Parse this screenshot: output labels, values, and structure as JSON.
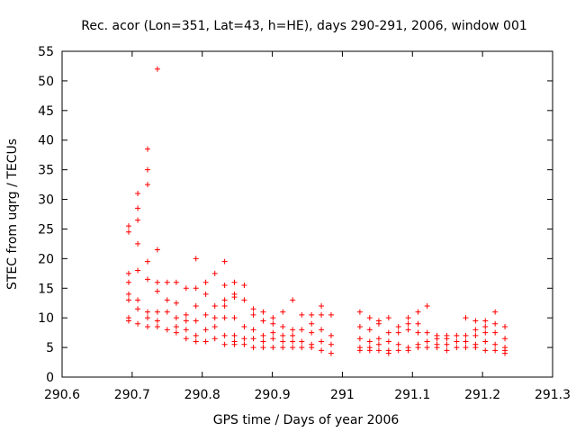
{
  "chart_data": {
    "type": "scatter",
    "title": "Rec. acor (Lon=351, Lat=43, h=HE), days 290-291, 2006, window 001",
    "xlabel": "GPS time / Days of year 2006",
    "ylabel": "STEC from uqrg / TECUs",
    "xlim": [
      290.6,
      291.3
    ],
    "ylim": [
      0,
      55
    ],
    "xticks": [
      290.6,
      290.7,
      290.8,
      290.9,
      291.0,
      291.1,
      291.2,
      291.3
    ],
    "xtick_labels": [
      "290.6",
      "290.7",
      "290.8",
      "290.9",
      "291",
      "291.1",
      "291.2",
      "291.3"
    ],
    "yticks": [
      0,
      5,
      10,
      15,
      20,
      25,
      30,
      35,
      40,
      45,
      50,
      55
    ],
    "ytick_labels": [
      "0",
      "5",
      "10",
      "15",
      "20",
      "25",
      "30",
      "35",
      "40",
      "45",
      "50",
      "55"
    ],
    "grid": false,
    "marker": "+",
    "color": "#ff0000",
    "series": [
      {
        "name": "STEC",
        "points": [
          [
            290.695,
            24.5
          ],
          [
            290.695,
            25.5
          ],
          [
            290.695,
            17.5
          ],
          [
            290.695,
            16.0
          ],
          [
            290.695,
            14.0
          ],
          [
            290.695,
            13.0
          ],
          [
            290.695,
            10.0
          ],
          [
            290.695,
            9.5
          ],
          [
            290.708,
            31.0
          ],
          [
            290.708,
            28.5
          ],
          [
            290.708,
            26.5
          ],
          [
            290.708,
            22.5
          ],
          [
            290.708,
            18.0
          ],
          [
            290.708,
            13.0
          ],
          [
            290.708,
            11.5
          ],
          [
            290.708,
            9.0
          ],
          [
            290.722,
            38.5
          ],
          [
            290.722,
            35.0
          ],
          [
            290.722,
            32.5
          ],
          [
            290.722,
            19.5
          ],
          [
            290.722,
            16.5
          ],
          [
            290.722,
            11.0
          ],
          [
            290.722,
            10.0
          ],
          [
            290.722,
            8.5
          ],
          [
            290.736,
            52.0
          ],
          [
            290.736,
            21.5
          ],
          [
            290.736,
            16.0
          ],
          [
            290.736,
            14.5
          ],
          [
            290.736,
            11.0
          ],
          [
            290.736,
            9.5
          ],
          [
            290.736,
            8.5
          ],
          [
            290.75,
            16.0
          ],
          [
            290.75,
            13.0
          ],
          [
            290.75,
            11.0
          ],
          [
            290.75,
            8.0
          ],
          [
            290.763,
            16.0
          ],
          [
            290.763,
            12.5
          ],
          [
            290.763,
            10.0
          ],
          [
            290.763,
            8.5
          ],
          [
            290.763,
            7.5
          ],
          [
            290.777,
            15.0
          ],
          [
            290.777,
            10.5
          ],
          [
            290.777,
            9.5
          ],
          [
            290.777,
            8.0
          ],
          [
            290.777,
            6.5
          ],
          [
            290.791,
            20.0
          ],
          [
            290.791,
            15.0
          ],
          [
            290.791,
            12.0
          ],
          [
            290.791,
            9.5
          ],
          [
            290.791,
            7.0
          ],
          [
            290.791,
            6.0
          ],
          [
            290.805,
            16.0
          ],
          [
            290.805,
            14.0
          ],
          [
            290.805,
            10.5
          ],
          [
            290.805,
            8.0
          ],
          [
            290.805,
            6.0
          ],
          [
            290.818,
            17.5
          ],
          [
            290.818,
            12.0
          ],
          [
            290.818,
            10.0
          ],
          [
            290.818,
            8.5
          ],
          [
            290.818,
            6.5
          ],
          [
            290.832,
            19.5
          ],
          [
            290.832,
            15.5
          ],
          [
            290.832,
            13.0
          ],
          [
            290.832,
            12.0
          ],
          [
            290.832,
            10.0
          ],
          [
            290.832,
            7.0
          ],
          [
            290.832,
            5.5
          ],
          [
            290.846,
            16.0
          ],
          [
            290.846,
            14.0
          ],
          [
            290.846,
            13.5
          ],
          [
            290.846,
            10.0
          ],
          [
            290.846,
            7.0
          ],
          [
            290.846,
            6.0
          ],
          [
            290.846,
            5.5
          ],
          [
            290.86,
            15.5
          ],
          [
            290.86,
            13.0
          ],
          [
            290.86,
            8.5
          ],
          [
            290.86,
            6.5
          ],
          [
            290.86,
            5.5
          ],
          [
            290.873,
            11.5
          ],
          [
            290.873,
            10.5
          ],
          [
            290.873,
            8.0
          ],
          [
            290.873,
            6.5
          ],
          [
            290.873,
            5.0
          ],
          [
            290.887,
            11.0
          ],
          [
            290.887,
            9.5
          ],
          [
            290.887,
            7.0
          ],
          [
            290.887,
            6.0
          ],
          [
            290.887,
            5.0
          ],
          [
            290.901,
            10.0
          ],
          [
            290.901,
            9.0
          ],
          [
            290.901,
            7.5
          ],
          [
            290.901,
            6.5
          ],
          [
            290.901,
            5.0
          ],
          [
            290.915,
            11.0
          ],
          [
            290.915,
            8.5
          ],
          [
            290.915,
            7.0
          ],
          [
            290.915,
            6.0
          ],
          [
            290.915,
            5.0
          ],
          [
            290.929,
            13.0
          ],
          [
            290.929,
            8.0
          ],
          [
            290.929,
            7.0
          ],
          [
            290.929,
            6.0
          ],
          [
            290.929,
            5.0
          ],
          [
            290.942,
            10.5
          ],
          [
            290.942,
            8.0
          ],
          [
            290.942,
            6.0
          ],
          [
            290.942,
            5.0
          ],
          [
            290.956,
            10.5
          ],
          [
            290.956,
            9.0
          ],
          [
            290.956,
            7.5
          ],
          [
            290.956,
            5.5
          ],
          [
            290.956,
            5.0
          ],
          [
            290.97,
            12.0
          ],
          [
            290.97,
            10.5
          ],
          [
            290.97,
            8.0
          ],
          [
            290.97,
            6.0
          ],
          [
            290.97,
            4.5
          ],
          [
            290.984,
            10.5
          ],
          [
            290.984,
            7.0
          ],
          [
            290.984,
            5.5
          ],
          [
            290.984,
            4.0
          ],
          [
            291.025,
            11.0
          ],
          [
            291.025,
            8.5
          ],
          [
            291.025,
            6.5
          ],
          [
            291.025,
            5.0
          ],
          [
            291.025,
            4.5
          ],
          [
            291.039,
            10.0
          ],
          [
            291.039,
            8.0
          ],
          [
            291.039,
            6.0
          ],
          [
            291.039,
            5.0
          ],
          [
            291.039,
            4.5
          ],
          [
            291.052,
            9.5
          ],
          [
            291.052,
            9.0
          ],
          [
            291.052,
            6.5
          ],
          [
            291.052,
            5.5
          ],
          [
            291.052,
            4.5
          ],
          [
            291.066,
            10.0
          ],
          [
            291.066,
            7.5
          ],
          [
            291.066,
            6.0
          ],
          [
            291.066,
            4.5
          ],
          [
            291.066,
            4.0
          ],
          [
            291.08,
            8.5
          ],
          [
            291.08,
            7.5
          ],
          [
            291.08,
            5.5
          ],
          [
            291.08,
            4.5
          ],
          [
            291.094,
            10.0
          ],
          [
            291.094,
            9.0
          ],
          [
            291.094,
            8.0
          ],
          [
            291.094,
            5.0
          ],
          [
            291.094,
            4.5
          ],
          [
            291.108,
            11.0
          ],
          [
            291.108,
            9.0
          ],
          [
            291.108,
            7.5
          ],
          [
            291.108,
            5.5
          ],
          [
            291.108,
            5.0
          ],
          [
            291.121,
            12.0
          ],
          [
            291.121,
            7.5
          ],
          [
            291.121,
            6.0
          ],
          [
            291.121,
            5.0
          ],
          [
            291.135,
            7.0
          ],
          [
            291.135,
            6.5
          ],
          [
            291.135,
            5.5
          ],
          [
            291.135,
            5.0
          ],
          [
            291.149,
            7.0
          ],
          [
            291.149,
            6.5
          ],
          [
            291.149,
            5.5
          ],
          [
            291.149,
            4.5
          ],
          [
            291.163,
            7.0
          ],
          [
            291.163,
            6.0
          ],
          [
            291.163,
            5.0
          ],
          [
            291.176,
            10.0
          ],
          [
            291.176,
            7.0
          ],
          [
            291.176,
            6.0
          ],
          [
            291.176,
            5.0
          ],
          [
            291.19,
            9.5
          ],
          [
            291.19,
            8.0
          ],
          [
            291.19,
            7.0
          ],
          [
            291.19,
            5.5
          ],
          [
            291.19,
            5.0
          ],
          [
            291.204,
            9.5
          ],
          [
            291.204,
            8.5
          ],
          [
            291.204,
            7.5
          ],
          [
            291.204,
            6.0
          ],
          [
            291.204,
            4.5
          ],
          [
            291.218,
            11.0
          ],
          [
            291.218,
            9.0
          ],
          [
            291.218,
            7.5
          ],
          [
            291.218,
            5.5
          ],
          [
            291.218,
            4.5
          ],
          [
            291.232,
            8.5
          ],
          [
            291.232,
            6.5
          ],
          [
            291.232,
            5.0
          ],
          [
            291.232,
            4.5
          ],
          [
            291.232,
            4.0
          ]
        ]
      }
    ]
  }
}
